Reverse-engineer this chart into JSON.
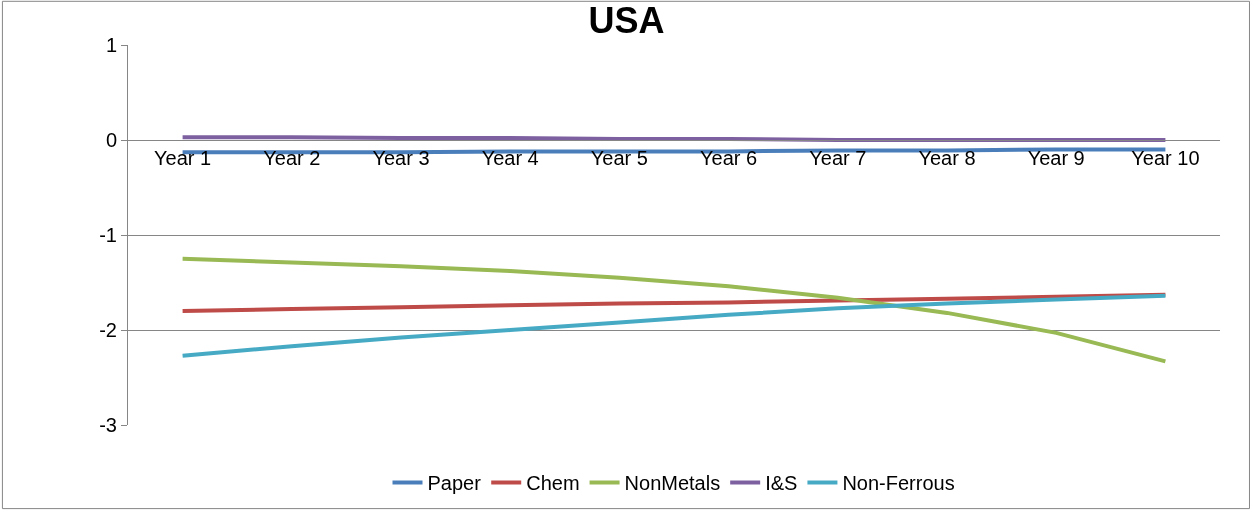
{
  "chart_data": {
    "type": "line",
    "title": "USA",
    "categories": [
      "Year 1",
      "Year 2",
      "Year 3",
      "Year 4",
      "Year 5",
      "Year 6",
      "Year 7",
      "Year 8",
      "Year 9",
      "Year 10"
    ],
    "series": [
      {
        "name": "Paper",
        "color": "#4a7ebb",
        "values": [
          -0.13,
          -0.13,
          -0.13,
          -0.12,
          -0.12,
          -0.12,
          -0.11,
          -0.11,
          -0.1,
          -0.1
        ]
      },
      {
        "name": "Chem",
        "color": "#be4b48",
        "values": [
          -1.8,
          -1.78,
          -1.76,
          -1.74,
          -1.72,
          -1.71,
          -1.69,
          -1.67,
          -1.65,
          -1.63
        ]
      },
      {
        "name": "NonMetals",
        "color": "#98b954",
        "values": [
          -1.25,
          -1.29,
          -1.33,
          -1.38,
          -1.45,
          -1.54,
          -1.66,
          -1.82,
          -2.03,
          -2.33
        ]
      },
      {
        "name": "I&S",
        "color": "#7d60a0",
        "values": [
          0.03,
          0.03,
          0.02,
          0.02,
          0.01,
          0.01,
          0.0,
          0.0,
          0.0,
          0.0
        ]
      },
      {
        "name": "Non-Ferrous",
        "color": "#46aac5",
        "values": [
          -2.27,
          -2.17,
          -2.08,
          -2.0,
          -1.92,
          -1.84,
          -1.77,
          -1.72,
          -1.68,
          -1.64
        ]
      }
    ],
    "ylim": [
      -3,
      1
    ],
    "yticks": [
      -3,
      -2,
      -1,
      0,
      1
    ],
    "grid": "y",
    "legend": "bottom",
    "marker": "none",
    "line_style": "solid"
  }
}
